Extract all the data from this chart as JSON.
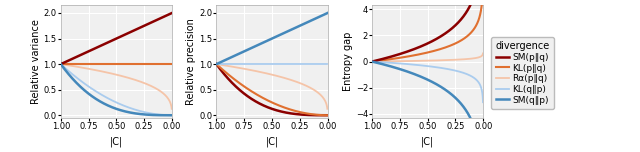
{
  "colors": {
    "SM_pq": "#8B0000",
    "KL_pq": "#E07030",
    "Ra_pq": "#F5C4A8",
    "KL_qp": "#AACCEE",
    "SM_qp": "#4488BB"
  },
  "linewidths": {
    "SM_pq": 1.8,
    "KL_pq": 1.5,
    "Ra_pq": 1.3,
    "KL_qp": 1.3,
    "SM_qp": 1.8
  },
  "legend_labels": [
    "SM(p‖q)",
    "KL(p‖q)",
    "Rα(p‖q)",
    "KL(q‖p)",
    "SM(q‖p)"
  ],
  "legend_title": "divergence",
  "panel1_ylabel": "Relative variance",
  "panel2_ylabel": "Relative precision",
  "panel3_ylabel": "Entropy gap",
  "xlabel": "|C|",
  "panel1_ylim": [
    -0.05,
    2.15
  ],
  "panel2_ylim": [
    -0.05,
    2.15
  ],
  "panel3_ylim": [
    -4.3,
    4.3
  ],
  "bg_color": "#F0F0F0",
  "grid_color": "white",
  "label_fontsize": 7,
  "tick_fontsize": 6,
  "legend_fontsize": 6.5
}
